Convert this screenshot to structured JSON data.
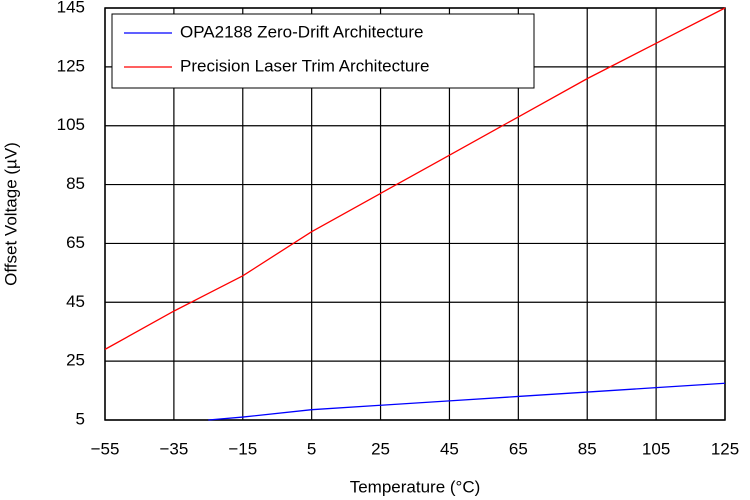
{
  "chart_data": {
    "type": "line",
    "xlabel": "Temperature (°C)",
    "ylabel": "Offset Voltage (µV)",
    "x": [
      -55,
      -35,
      -25,
      -15,
      5,
      25,
      45,
      65,
      85,
      105,
      125
    ],
    "series": [
      {
        "name": "OPA2188 Zero-Drift Architecture",
        "color": "#0000ff",
        "values": [
          null,
          null,
          5,
          6,
          8.5,
          10,
          11.5,
          13,
          14.5,
          16,
          17.5
        ]
      },
      {
        "name": "Precision Laser Trim Architecture",
        "color": "#ff0000",
        "values": [
          29,
          42,
          48,
          54,
          69,
          82,
          95,
          108,
          121,
          133,
          145
        ]
      }
    ],
    "xlim": [
      -55,
      125
    ],
    "xticks": [
      {
        "value": -55,
        "label": "−55"
      },
      {
        "value": -35,
        "label": "−35"
      },
      {
        "value": -15,
        "label": "−15"
      },
      5,
      25,
      45,
      65,
      85,
      105,
      125
    ],
    "ylim": [
      5,
      145
    ],
    "yticks": [
      5,
      25,
      45,
      65,
      85,
      105,
      125,
      145
    ],
    "grid": true,
    "legend": "upper-left"
  }
}
